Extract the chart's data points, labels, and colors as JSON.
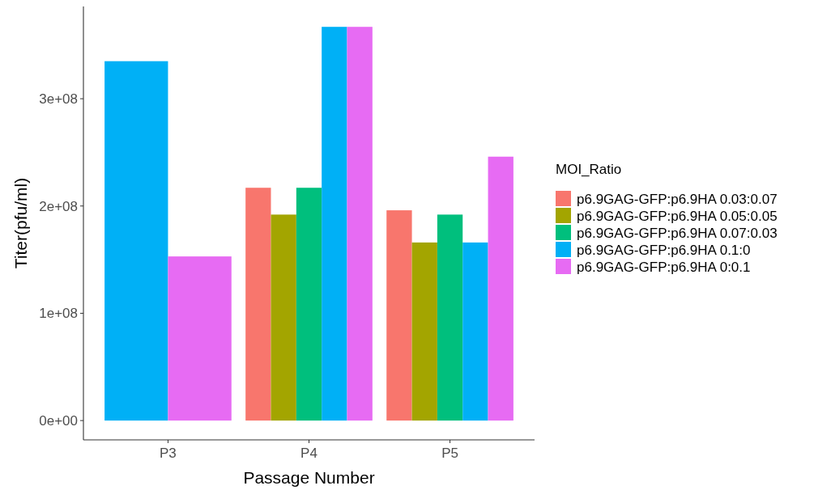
{
  "chart_data": {
    "type": "bar",
    "xlabel": "Passage Number",
    "ylabel": "Titer(pfu/ml)",
    "legend_title": "MOI_Ratio",
    "legend": "right",
    "grid": false,
    "categories": [
      "P3",
      "P4",
      "P5"
    ],
    "ylim": [
      -18000000,
      386000000
    ],
    "yticks": [
      {
        "value": 0,
        "label": "0e+00"
      },
      {
        "value": 100000000,
        "label": "1e+08"
      },
      {
        "value": 200000000,
        "label": "2e+08"
      },
      {
        "value": 300000000,
        "label": "3e+08"
      }
    ],
    "series": [
      {
        "name": "p6.9GAG-GFP:p6.9HA 0.03:0.07",
        "color": "#f8766d",
        "values": [
          null,
          217000000,
          196000000
        ]
      },
      {
        "name": "p6.9GAG-GFP:p6.9HA 0.05:0.05",
        "color": "#a3a500",
        "values": [
          null,
          192000000,
          166000000
        ]
      },
      {
        "name": "p6.9GAG-GFP:p6.9HA 0.07:0.03",
        "color": "#00bf7d",
        "values": [
          null,
          217000000,
          192000000
        ]
      },
      {
        "name": "p6.9GAG-GFP:p6.9HA 0.1:0",
        "color": "#00b0f6",
        "values": [
          335000000,
          367000000,
          166000000
        ]
      },
      {
        "name": "p6.9GAG-GFP:p6.9HA 0:0.1",
        "color": "#e76bf3",
        "values": [
          153000000,
          367000000,
          246000000
        ]
      }
    ]
  }
}
